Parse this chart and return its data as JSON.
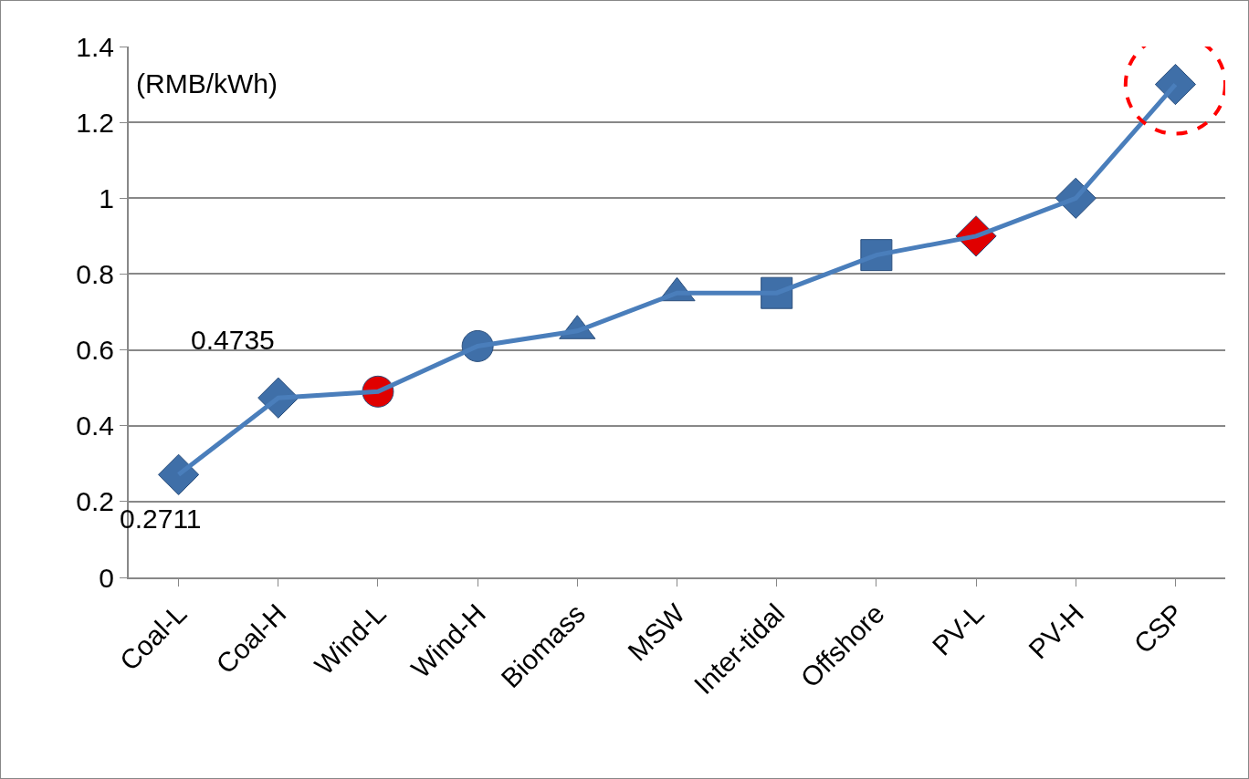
{
  "chart_data": {
    "type": "line",
    "categories": [
      "Coal-L",
      "Coal-H",
      "Wind-L",
      "Wind-H",
      "Biomass",
      "MSW",
      "Inter-tidal",
      "Offshore",
      "PV-L",
      "PV-H",
      "CSP"
    ],
    "series": [
      {
        "color": "#4a7ebb",
        "marker": "none",
        "values": [
          0.2711,
          0.4735,
          0.49,
          0.61,
          0.65,
          0.75,
          0.75,
          0.85,
          0.9,
          1.0,
          1.3
        ],
        "value_labels": [
          "0.2711",
          "0.4735",
          null,
          null,
          null,
          null,
          null,
          null,
          null,
          null,
          null
        ]
      },
      {
        "type": "scatter",
        "marker": "diamond",
        "x": [
          "Coal-L",
          "Coal-H",
          "PV-L",
          "PV-H",
          "CSP"
        ],
        "colors": [
          "#3f6fa8",
          "#3f6fa8",
          "#e00000",
          "#3f6fa8",
          "#3f6fa8"
        ],
        "values": [
          0.2711,
          0.4735,
          0.9,
          1.0,
          1.3
        ]
      },
      {
        "type": "scatter",
        "marker": "circle",
        "x": [
          "Wind-L",
          "Wind-H"
        ],
        "colors": [
          "#e00000",
          "#3f6fa8"
        ],
        "values": [
          0.49,
          0.61
        ]
      },
      {
        "type": "scatter",
        "marker": "triangle",
        "x": [
          "Biomass",
          "MSW"
        ],
        "colors": [
          "#3f6fa8",
          "#3f6fa8"
        ],
        "values": [
          0.65,
          0.75
        ]
      },
      {
        "type": "scatter",
        "marker": "square",
        "x": [
          "Inter-tidal",
          "Offshore"
        ],
        "colors": [
          "#3f6fa8",
          "#3f6fa8"
        ],
        "values": [
          0.75,
          0.85
        ]
      }
    ],
    "ylim": [
      0,
      1.4
    ],
    "yticks": [
      0,
      0.2,
      0.4,
      0.6,
      0.8,
      1,
      1.2,
      1.4
    ],
    "grid": "y",
    "annotations": [
      "(RMB/kWh)"
    ]
  }
}
